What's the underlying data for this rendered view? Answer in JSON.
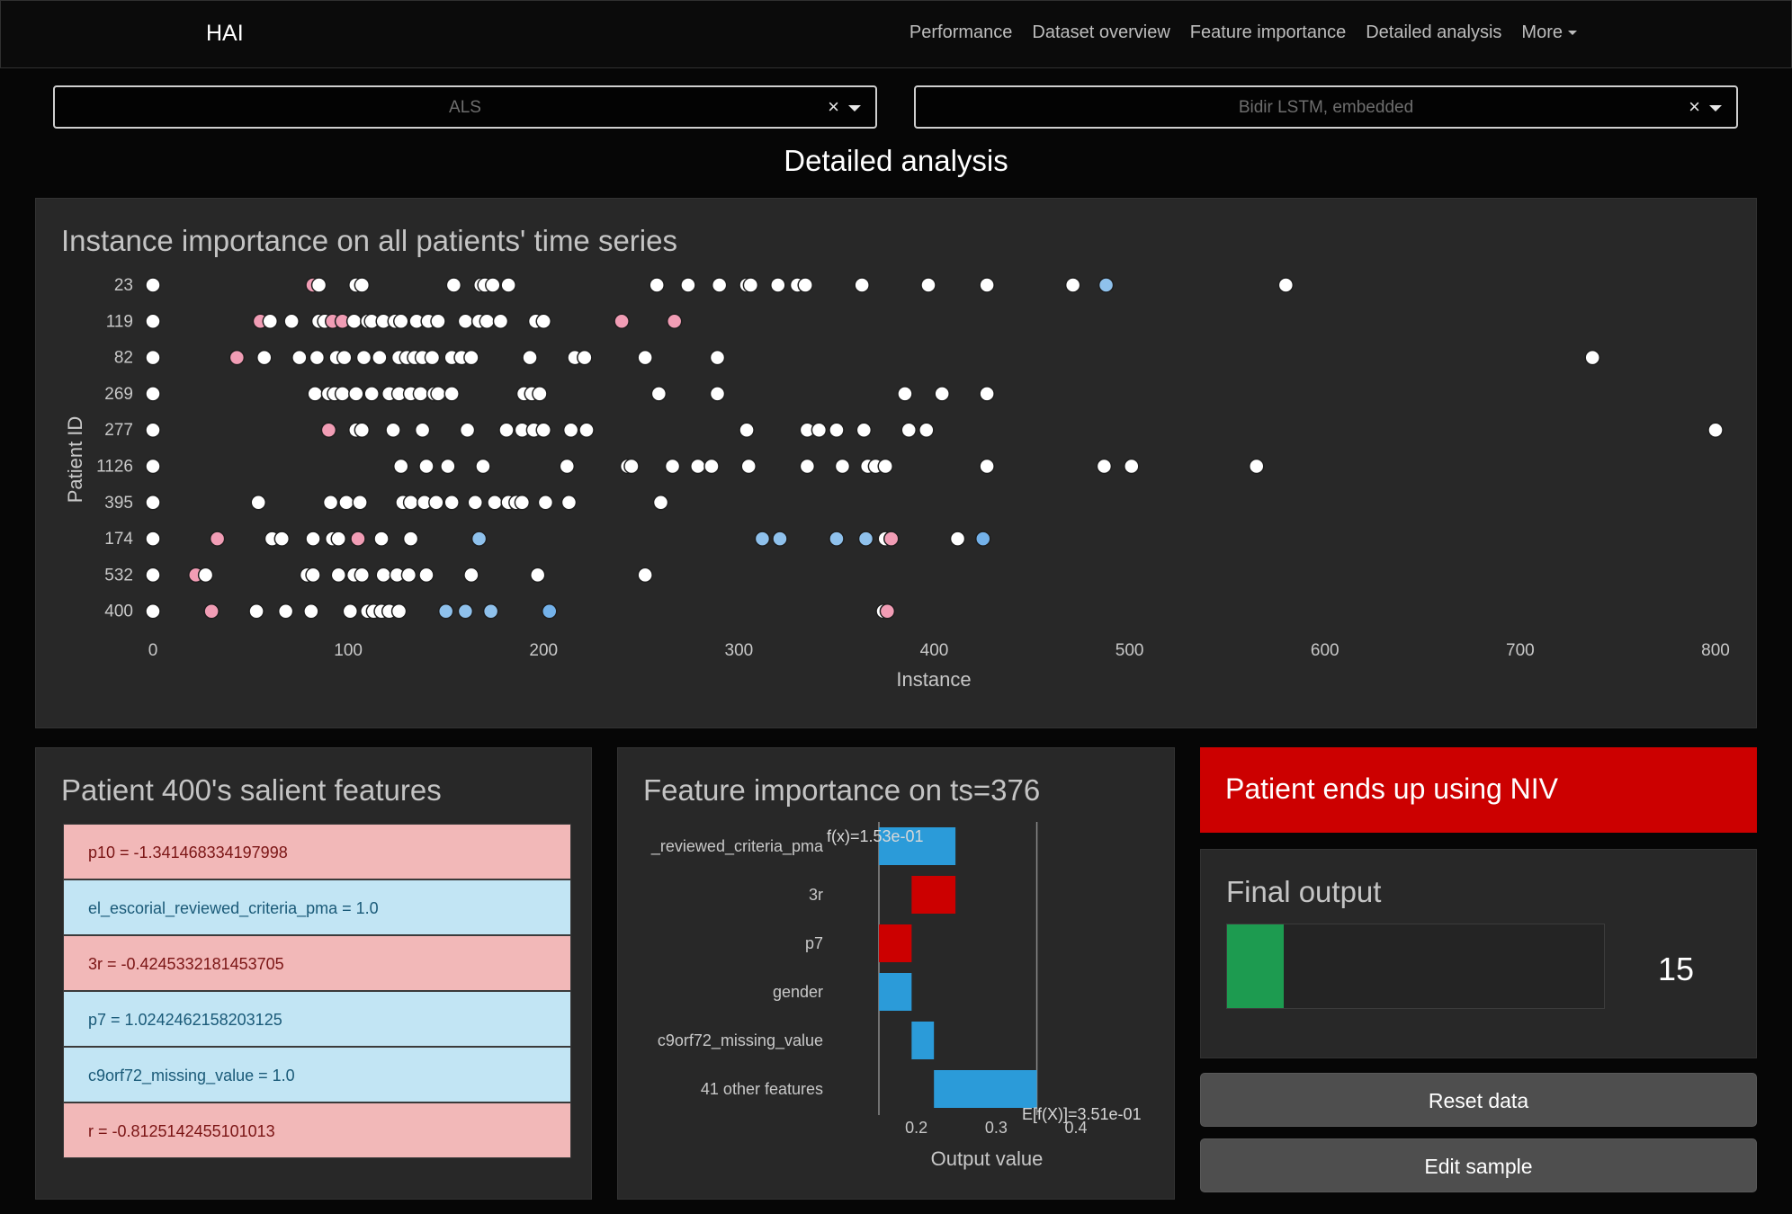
{
  "app": {
    "brand": "HAI"
  },
  "nav": {
    "links": [
      "Performance",
      "Dataset overview",
      "Feature importance",
      "Detailed analysis"
    ],
    "more_label": "More"
  },
  "selectors": {
    "dataset": {
      "value": "ALS",
      "clear": "×"
    },
    "model": {
      "value": "Bidir LSTM, embedded",
      "clear": "×"
    }
  },
  "page": {
    "title": "Detailed analysis"
  },
  "instance_importance": {
    "title": "Instance importance on all patients' time series",
    "xlabel": "Instance",
    "ylabel": "Patient ID"
  },
  "salient_features": {
    "title": "Patient 400's salient features",
    "items": [
      {
        "text": "p10 = -1.341468334197998",
        "effect": "positive"
      },
      {
        "text": "el_escorial_reviewed_criteria_pma = 1.0",
        "effect": "negative"
      },
      {
        "text": "3r = -0.4245332181453705",
        "effect": "positive"
      },
      {
        "text": "p7 = 1.0242462158203125",
        "effect": "negative"
      },
      {
        "text": "c9orf72_missing_value = 1.0",
        "effect": "negative"
      },
      {
        "text": "r = -0.8125142455101013",
        "effect": "positive"
      }
    ]
  },
  "feature_importance": {
    "title": "Feature importance on ts=376",
    "xlabel": "Output value",
    "fx_label": "f(x)=1.53e-01",
    "efx_label": "E[f(X)]=3.51e-01"
  },
  "outcome": {
    "banner": "Patient ends up using NIV"
  },
  "final_output": {
    "title": "Final output",
    "value": "15",
    "fill_fraction": 0.15
  },
  "buttons": {
    "reset": "Reset data",
    "edit": "Edit sample"
  },
  "colors": {
    "positive": "#cc0000",
    "negative": "#2b9bd9",
    "final_output_fill": "#1d9b50",
    "point_high": "#f19db5",
    "point_low": "#8fc1ec"
  },
  "chart_data": [
    {
      "type": "scatter",
      "title": "Instance importance on all patients' time series",
      "xlabel": "Instance",
      "ylabel": "Patient ID",
      "xlim": [
        0,
        800
      ],
      "xticks": [
        0,
        100,
        200,
        300,
        400,
        500,
        600,
        700,
        800
      ],
      "categories": [
        "23",
        "119",
        "82",
        "269",
        "277",
        "1126",
        "395",
        "174",
        "532",
        "400"
      ],
      "grid": false,
      "series": [
        {
          "patient": "23",
          "points": [
            [
              0,
              "white"
            ],
            [
              82,
              "pink"
            ],
            [
              85,
              "white"
            ],
            [
              104,
              "white"
            ],
            [
              107,
              "white"
            ],
            [
              154,
              "white"
            ],
            [
              168,
              "white"
            ],
            [
              170,
              "white"
            ],
            [
              174,
              "white"
            ],
            [
              182,
              "white"
            ],
            [
              258,
              "white"
            ],
            [
              274,
              "white"
            ],
            [
              290,
              "white"
            ],
            [
              304,
              "white"
            ],
            [
              306,
              "white"
            ],
            [
              320,
              "white"
            ],
            [
              330,
              "white"
            ],
            [
              334,
              "white"
            ],
            [
              363,
              "white"
            ],
            [
              397,
              "white"
            ],
            [
              427,
              "white"
            ],
            [
              471,
              "white"
            ],
            [
              488,
              "lightblue"
            ],
            [
              580,
              "white"
            ]
          ]
        },
        {
          "patient": "119",
          "points": [
            [
              0,
              "white"
            ],
            [
              55,
              "pink"
            ],
            [
              60,
              "white"
            ],
            [
              71,
              "white"
            ],
            [
              85,
              "white"
            ],
            [
              88,
              "white"
            ],
            [
              92,
              "pink"
            ],
            [
              97,
              "pink"
            ],
            [
              103,
              "white"
            ],
            [
              110,
              "white"
            ],
            [
              112,
              "white"
            ],
            [
              118,
              "white"
            ],
            [
              124,
              "white"
            ],
            [
              127,
              "white"
            ],
            [
              135,
              "white"
            ],
            [
              141,
              "white"
            ],
            [
              146,
              "white"
            ],
            [
              160,
              "white"
            ],
            [
              167,
              "white"
            ],
            [
              171,
              "white"
            ],
            [
              178,
              "white"
            ],
            [
              196,
              "white"
            ],
            [
              200,
              "white"
            ],
            [
              240,
              "pink"
            ],
            [
              267,
              "pink"
            ]
          ]
        },
        {
          "patient": "82",
          "points": [
            [
              0,
              "white"
            ],
            [
              43,
              "pink"
            ],
            [
              57,
              "white"
            ],
            [
              75,
              "white"
            ],
            [
              84,
              "white"
            ],
            [
              94,
              "white"
            ],
            [
              98,
              "white"
            ],
            [
              108,
              "white"
            ],
            [
              116,
              "white"
            ],
            [
              126,
              "white"
            ],
            [
              130,
              "white"
            ],
            [
              134,
              "white"
            ],
            [
              138,
              "white"
            ],
            [
              143,
              "white"
            ],
            [
              153,
              "white"
            ],
            [
              158,
              "white"
            ],
            [
              163,
              "white"
            ],
            [
              193,
              "white"
            ],
            [
              216,
              "white"
            ],
            [
              221,
              "white"
            ],
            [
              252,
              "white"
            ],
            [
              289,
              "white"
            ],
            [
              737,
              "white"
            ]
          ]
        },
        {
          "patient": "269",
          "points": [
            [
              0,
              "white"
            ],
            [
              83,
              "white"
            ],
            [
              90,
              "white"
            ],
            [
              93,
              "white"
            ],
            [
              97,
              "white"
            ],
            [
              104,
              "white"
            ],
            [
              112,
              "white"
            ],
            [
              121,
              "white"
            ],
            [
              126,
              "white"
            ],
            [
              132,
              "white"
            ],
            [
              137,
              "white"
            ],
            [
              144,
              "white"
            ],
            [
              146,
              "white"
            ],
            [
              153,
              "white"
            ],
            [
              190,
              "white"
            ],
            [
              194,
              "white"
            ],
            [
              198,
              "white"
            ],
            [
              259,
              "white"
            ],
            [
              289,
              "white"
            ],
            [
              385,
              "white"
            ],
            [
              404,
              "white"
            ],
            [
              427,
              "white"
            ]
          ]
        },
        {
          "patient": "277",
          "points": [
            [
              0,
              "white"
            ],
            [
              90,
              "pink"
            ],
            [
              104,
              "white"
            ],
            [
              107,
              "white"
            ],
            [
              123,
              "white"
            ],
            [
              138,
              "white"
            ],
            [
              161,
              "white"
            ],
            [
              181,
              "white"
            ],
            [
              189,
              "white"
            ],
            [
              195,
              "white"
            ],
            [
              200,
              "white"
            ],
            [
              214,
              "white"
            ],
            [
              222,
              "white"
            ],
            [
              304,
              "white"
            ],
            [
              335,
              "white"
            ],
            [
              341,
              "white"
            ],
            [
              350,
              "white"
            ],
            [
              364,
              "white"
            ],
            [
              387,
              "white"
            ],
            [
              396,
              "white"
            ],
            [
              800,
              "white"
            ]
          ]
        },
        {
          "patient": "1126",
          "points": [
            [
              0,
              "white"
            ],
            [
              127,
              "white"
            ],
            [
              140,
              "white"
            ],
            [
              151,
              "white"
            ],
            [
              169,
              "white"
            ],
            [
              212,
              "white"
            ],
            [
              243,
              "white"
            ],
            [
              245,
              "white"
            ],
            [
              266,
              "white"
            ],
            [
              279,
              "white"
            ],
            [
              286,
              "white"
            ],
            [
              305,
              "white"
            ],
            [
              335,
              "white"
            ],
            [
              353,
              "white"
            ],
            [
              366,
              "white"
            ],
            [
              370,
              "white"
            ],
            [
              375,
              "white"
            ],
            [
              427,
              "white"
            ],
            [
              487,
              "white"
            ],
            [
              501,
              "white"
            ],
            [
              565,
              "white"
            ]
          ]
        },
        {
          "patient": "395",
          "points": [
            [
              0,
              "white"
            ],
            [
              54,
              "white"
            ],
            [
              91,
              "white"
            ],
            [
              99,
              "white"
            ],
            [
              106,
              "white"
            ],
            [
              128,
              "white"
            ],
            [
              132,
              "white"
            ],
            [
              139,
              "white"
            ],
            [
              145,
              "white"
            ],
            [
              153,
              "white"
            ],
            [
              165,
              "white"
            ],
            [
              175,
              "white"
            ],
            [
              182,
              "white"
            ],
            [
              186,
              "white"
            ],
            [
              189,
              "white"
            ],
            [
              201,
              "white"
            ],
            [
              213,
              "white"
            ],
            [
              260,
              "white"
            ]
          ]
        },
        {
          "patient": "174",
          "points": [
            [
              0,
              "white"
            ],
            [
              33,
              "pink"
            ],
            [
              61,
              "white"
            ],
            [
              66,
              "white"
            ],
            [
              82,
              "white"
            ],
            [
              92,
              "white"
            ],
            [
              95,
              "white"
            ],
            [
              105,
              "pink"
            ],
            [
              117,
              "white"
            ],
            [
              132,
              "white"
            ],
            [
              167,
              "lightblue"
            ],
            [
              312,
              "lightblue"
            ],
            [
              321,
              "lightblue"
            ],
            [
              350,
              "lightblue"
            ],
            [
              365,
              "lightblue"
            ],
            [
              375,
              "white"
            ],
            [
              378,
              "pink"
            ],
            [
              412,
              "white"
            ],
            [
              425,
              "blue"
            ]
          ]
        },
        {
          "patient": "532",
          "points": [
            [
              0,
              "white"
            ],
            [
              22,
              "pink"
            ],
            [
              27,
              "white"
            ],
            [
              79,
              "white"
            ],
            [
              82,
              "white"
            ],
            [
              95,
              "white"
            ],
            [
              103,
              "white"
            ],
            [
              107,
              "white"
            ],
            [
              118,
              "white"
            ],
            [
              125,
              "white"
            ],
            [
              131,
              "white"
            ],
            [
              140,
              "white"
            ],
            [
              163,
              "white"
            ],
            [
              197,
              "white"
            ],
            [
              252,
              "white"
            ]
          ]
        },
        {
          "patient": "400",
          "points": [
            [
              0,
              "white"
            ],
            [
              30,
              "pink"
            ],
            [
              53,
              "white"
            ],
            [
              68,
              "white"
            ],
            [
              81,
              "white"
            ],
            [
              101,
              "white"
            ],
            [
              110,
              "white"
            ],
            [
              113,
              "white"
            ],
            [
              117,
              "white"
            ],
            [
              121,
              "white"
            ],
            [
              126,
              "white"
            ],
            [
              150,
              "lightblue"
            ],
            [
              160,
              "lightblue"
            ],
            [
              173,
              "lightblue"
            ],
            [
              203,
              "blue"
            ],
            [
              374,
              "white"
            ],
            [
              376,
              "pink"
            ]
          ]
        }
      ]
    },
    {
      "type": "bar",
      "subtype": "waterfall",
      "title": "Feature importance on ts=376",
      "xlabel": "Output value",
      "xlim": [
        0.1,
        0.4
      ],
      "xticks": [
        0.2,
        0.3,
        0.4
      ],
      "base_value": 0.351,
      "output_value": 0.153,
      "categories": [
        "_reviewed_criteria_pma",
        "3r",
        "p7",
        "gender",
        "c9orf72_missing_value",
        "41 other features"
      ],
      "series": [
        {
          "name": "contribution",
          "bars": [
            {
              "feature": "_reviewed_criteria_pma",
              "from": 0.249,
              "to": 0.153
            },
            {
              "feature": "3r",
              "from": 0.194,
              "to": 0.249
            },
            {
              "feature": "p7",
              "from": 0.153,
              "to": 0.194
            },
            {
              "feature": "gender",
              "from": 0.194,
              "to": 0.153
            },
            {
              "feature": "c9orf72_missing_value",
              "from": 0.222,
              "to": 0.194
            },
            {
              "feature": "41 other features",
              "from": 0.351,
              "to": 0.222
            }
          ]
        }
      ]
    }
  ]
}
